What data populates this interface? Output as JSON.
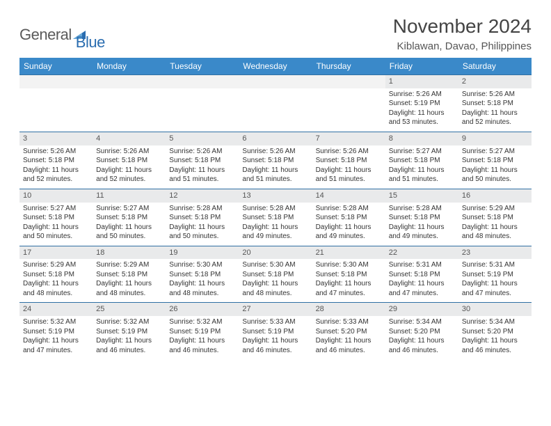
{
  "logo": {
    "word1": "General",
    "word2": "Blue"
  },
  "title": "November 2024",
  "location": "Kiblawan, Davao, Philippines",
  "colors": {
    "header_bg": "#3a89c9",
    "header_text": "#ffffff",
    "row_divider": "#2f6fa3",
    "daynum_bg": "#e9eaeb",
    "logo_gray": "#5a5a5a",
    "logo_blue": "#2a6db0",
    "text": "#333333",
    "page_bg": "#ffffff"
  },
  "day_headers": [
    "Sunday",
    "Monday",
    "Tuesday",
    "Wednesday",
    "Thursday",
    "Friday",
    "Saturday"
  ],
  "weeks": [
    [
      null,
      null,
      null,
      null,
      null,
      {
        "n": "1",
        "sunrise": "5:26 AM",
        "sunset": "5:19 PM",
        "daylight": "11 hours and 53 minutes."
      },
      {
        "n": "2",
        "sunrise": "5:26 AM",
        "sunset": "5:18 PM",
        "daylight": "11 hours and 52 minutes."
      }
    ],
    [
      {
        "n": "3",
        "sunrise": "5:26 AM",
        "sunset": "5:18 PM",
        "daylight": "11 hours and 52 minutes."
      },
      {
        "n": "4",
        "sunrise": "5:26 AM",
        "sunset": "5:18 PM",
        "daylight": "11 hours and 52 minutes."
      },
      {
        "n": "5",
        "sunrise": "5:26 AM",
        "sunset": "5:18 PM",
        "daylight": "11 hours and 51 minutes."
      },
      {
        "n": "6",
        "sunrise": "5:26 AM",
        "sunset": "5:18 PM",
        "daylight": "11 hours and 51 minutes."
      },
      {
        "n": "7",
        "sunrise": "5:26 AM",
        "sunset": "5:18 PM",
        "daylight": "11 hours and 51 minutes."
      },
      {
        "n": "8",
        "sunrise": "5:27 AM",
        "sunset": "5:18 PM",
        "daylight": "11 hours and 51 minutes."
      },
      {
        "n": "9",
        "sunrise": "5:27 AM",
        "sunset": "5:18 PM",
        "daylight": "11 hours and 50 minutes."
      }
    ],
    [
      {
        "n": "10",
        "sunrise": "5:27 AM",
        "sunset": "5:18 PM",
        "daylight": "11 hours and 50 minutes."
      },
      {
        "n": "11",
        "sunrise": "5:27 AM",
        "sunset": "5:18 PM",
        "daylight": "11 hours and 50 minutes."
      },
      {
        "n": "12",
        "sunrise": "5:28 AM",
        "sunset": "5:18 PM",
        "daylight": "11 hours and 50 minutes."
      },
      {
        "n": "13",
        "sunrise": "5:28 AM",
        "sunset": "5:18 PM",
        "daylight": "11 hours and 49 minutes."
      },
      {
        "n": "14",
        "sunrise": "5:28 AM",
        "sunset": "5:18 PM",
        "daylight": "11 hours and 49 minutes."
      },
      {
        "n": "15",
        "sunrise": "5:28 AM",
        "sunset": "5:18 PM",
        "daylight": "11 hours and 49 minutes."
      },
      {
        "n": "16",
        "sunrise": "5:29 AM",
        "sunset": "5:18 PM",
        "daylight": "11 hours and 48 minutes."
      }
    ],
    [
      {
        "n": "17",
        "sunrise": "5:29 AM",
        "sunset": "5:18 PM",
        "daylight": "11 hours and 48 minutes."
      },
      {
        "n": "18",
        "sunrise": "5:29 AM",
        "sunset": "5:18 PM",
        "daylight": "11 hours and 48 minutes."
      },
      {
        "n": "19",
        "sunrise": "5:30 AM",
        "sunset": "5:18 PM",
        "daylight": "11 hours and 48 minutes."
      },
      {
        "n": "20",
        "sunrise": "5:30 AM",
        "sunset": "5:18 PM",
        "daylight": "11 hours and 48 minutes."
      },
      {
        "n": "21",
        "sunrise": "5:30 AM",
        "sunset": "5:18 PM",
        "daylight": "11 hours and 47 minutes."
      },
      {
        "n": "22",
        "sunrise": "5:31 AM",
        "sunset": "5:18 PM",
        "daylight": "11 hours and 47 minutes."
      },
      {
        "n": "23",
        "sunrise": "5:31 AM",
        "sunset": "5:19 PM",
        "daylight": "11 hours and 47 minutes."
      }
    ],
    [
      {
        "n": "24",
        "sunrise": "5:32 AM",
        "sunset": "5:19 PM",
        "daylight": "11 hours and 47 minutes."
      },
      {
        "n": "25",
        "sunrise": "5:32 AM",
        "sunset": "5:19 PM",
        "daylight": "11 hours and 46 minutes."
      },
      {
        "n": "26",
        "sunrise": "5:32 AM",
        "sunset": "5:19 PM",
        "daylight": "11 hours and 46 minutes."
      },
      {
        "n": "27",
        "sunrise": "5:33 AM",
        "sunset": "5:19 PM",
        "daylight": "11 hours and 46 minutes."
      },
      {
        "n": "28",
        "sunrise": "5:33 AM",
        "sunset": "5:20 PM",
        "daylight": "11 hours and 46 minutes."
      },
      {
        "n": "29",
        "sunrise": "5:34 AM",
        "sunset": "5:20 PM",
        "daylight": "11 hours and 46 minutes."
      },
      {
        "n": "30",
        "sunrise": "5:34 AM",
        "sunset": "5:20 PM",
        "daylight": "11 hours and 46 minutes."
      }
    ]
  ],
  "labels": {
    "sunrise": "Sunrise: ",
    "sunset": "Sunset: ",
    "daylight": "Daylight: "
  }
}
